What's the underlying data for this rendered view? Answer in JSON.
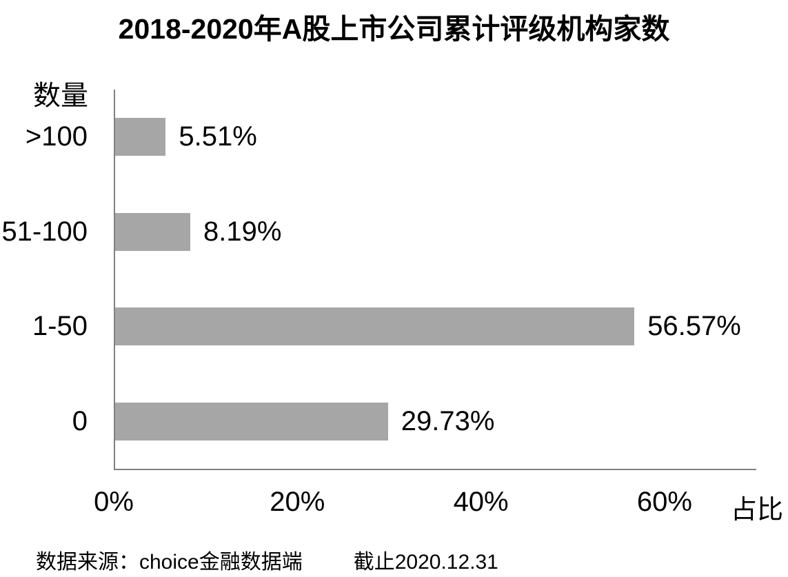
{
  "title": "2018-2020年A股上市公司累计评级机构家数",
  "chart_data": {
    "type": "bar",
    "orientation": "horizontal",
    "title": "2018-2020年A股上市公司累计评级机构家数",
    "ylabel": "数量",
    "xlabel": "占比",
    "categories": [
      ">100",
      "51-100",
      "1-50",
      "0"
    ],
    "values": [
      5.51,
      8.19,
      56.57,
      29.73
    ],
    "value_labels": [
      "5.51%",
      "8.19%",
      "56.57%",
      "29.73%"
    ],
    "xlim": [
      0,
      70
    ],
    "xticks": [
      {
        "value": 0,
        "label": "0%"
      },
      {
        "value": 20,
        "label": "20%"
      },
      {
        "value": 40,
        "label": "40%"
      },
      {
        "value": 60,
        "label": "60%"
      }
    ],
    "grid": false,
    "legend": false,
    "bar_color": "#a6a6a6",
    "axis_color": "#808080"
  },
  "footer": {
    "source": "数据来源：choice金融数据端",
    "cutoff": "截止2020.12.31"
  }
}
